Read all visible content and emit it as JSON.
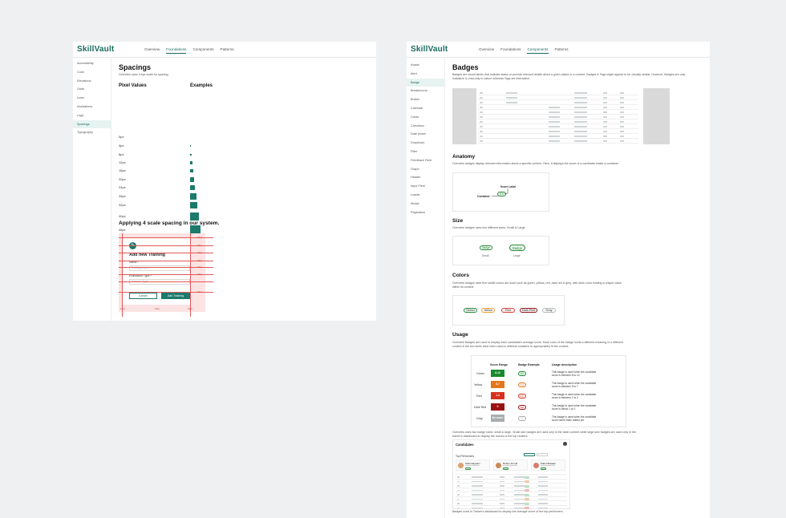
{
  "left": {
    "logo": "SkillVault",
    "nav": [
      "Overview",
      "Foundations",
      "Components",
      "Patterns"
    ],
    "active_nav": "Foundations",
    "sidebar": [
      "Accessibility",
      "Color",
      "Elevations",
      "Grids",
      "Icons",
      "Illustrations",
      "Logo",
      "Spacings",
      "Typography"
    ],
    "active_sidebar": "Spacings",
    "title": "Spacings",
    "intro": "Overview uses 4 Apx scale for spacing.",
    "col_pixel": "Pixel Values",
    "col_examples": "Examples",
    "spacings": [
      {
        "label": "0px",
        "value": 0
      },
      {
        "label": "4px",
        "value": 4
      },
      {
        "label": "8px",
        "value": 8
      },
      {
        "label": "12px",
        "value": 12
      },
      {
        "label": "16px",
        "value": 16
      },
      {
        "label": "20px",
        "value": 20
      },
      {
        "label": "24px",
        "value": 24
      },
      {
        "label": "28px",
        "value": 28
      },
      {
        "label": "32px",
        "value": 32
      },
      {
        "label": "40px",
        "value": 40
      },
      {
        "label": "48px",
        "value": 48
      },
      {
        "label": "56px",
        "value": 56
      }
    ],
    "applying_title": "Applying 4 scale spacing in our system.",
    "form": {
      "title": "Add new Training",
      "name_label": "Name *",
      "name_placeholder": "Training name",
      "eval_label": "Evaluation Type *",
      "eval_placeholder": "Select a Type",
      "cancel": "Cancel",
      "add": "Add Training",
      "guide_labels": [
        "16px",
        "16px",
        "16px",
        "16px",
        "16px",
        "16px",
        "16px"
      ],
      "bottom_labels": [
        "16px",
        "16px",
        "16px"
      ]
    }
  },
  "right": {
    "logo": "SkillVault",
    "nav": [
      "Overview",
      "Foundations",
      "Components",
      "Patterns"
    ],
    "active_nav": "Components",
    "sidebar": [
      "Avatar",
      "Alert",
      "Badge",
      "Breadcrumb",
      "Button",
      "Calendar",
      "Cards",
      "Checkbox",
      "Date picker",
      "Dropdown",
      "Filter",
      "Feedback Field",
      "Graph",
      "Header",
      "Input Field",
      "Loader",
      "Modal",
      "Pagination"
    ],
    "active_sidebar": "Badge",
    "title": "Badges",
    "intro": "Badges are visual labels that indicate status or provide relevant details about a given object or a content. Badges & Tags might appear to be visually similar. However, Badges are only indicative & read-only in nature whereas Tags are interactive.",
    "anatomy_title": "Anatomy",
    "anatomy_text": "Overview badges display relevant information about a specific context. Here, it displays the score of a candidate inside a container.",
    "anatomy_score_label": "Score Label",
    "anatomy_container": "Container",
    "anatomy_badge": "8.6",
    "size_title": "Size",
    "size_text": "Overview badges uses two different sizes: Small & Large",
    "size_badge": "Badge",
    "size_small": "Small",
    "size_large": "Large",
    "colors_title": "Colors",
    "colors_text": "Overview badges uses five subtle colors are used such as green, yellow, red, dark red & grey, with each color holding a unique value within its context.",
    "color_badges": [
      {
        "label": "Green",
        "color": "#2e8b3e"
      },
      {
        "label": "Yellow",
        "color": "#e8a23a"
      },
      {
        "label": "Red",
        "color": "#d9453d"
      },
      {
        "label": "Dark Red",
        "color": "#8f1d1d"
      },
      {
        "label": "Gray",
        "color": "#b5babd"
      }
    ],
    "usage_title": "Usage",
    "usage_text": "Overview Badges are used to display each candidate's average score. Each color of the badge holds a different meaning in a different context & the two sizes have been used in different locations to appropriately fit the context.",
    "usage_head": [
      "Score Range",
      "Badge Example",
      "Usage description"
    ],
    "usage_rows": [
      {
        "name": "Green",
        "range": "8-10",
        "badge": "8.6",
        "color": "#1a8a2e",
        "desc": "This badge is used when the candidate score is between 8 to 10"
      },
      {
        "name": "Yellow",
        "range": "5-7",
        "badge": "7.4",
        "color": "#e4761b",
        "desc": "This badge is used when the candidate score is between 5 to 7"
      },
      {
        "name": "Red",
        "range": "1-4",
        "badge": "2.2",
        "color": "#d6301f",
        "desc": "This badge is used when the candidate score is between 1 to 4"
      },
      {
        "name": "Dark Red",
        "range": "0",
        "badge": "0.0",
        "color": "#9b1212",
        "desc": "This badge is used when the candidate score is below 1 or 0"
      },
      {
        "name": "Gray",
        "range": "No score",
        "badge": "—",
        "color": "#a7acaf",
        "desc": "This badge is used when the candidate score hasn't been added yet"
      }
    ],
    "sizes_note": "Overview uses two badge sizes: small & large. Small size badges are used only in the table content while large size badges are used only in the trainer's dashboard to display the scores of the top rankers.",
    "cand_title": "Candidates",
    "cand_sub": "Top Performers",
    "performers": [
      {
        "name": "Nikki Naguam",
        "score": "9.6"
      },
      {
        "name": "Ruben Arnold",
        "score": "9.4"
      },
      {
        "name": "Nikki Nkalaam",
        "score": "9.2"
      }
    ],
    "caption": "Badges used in Trainer's dashboard to display the average score of the top performers."
  }
}
